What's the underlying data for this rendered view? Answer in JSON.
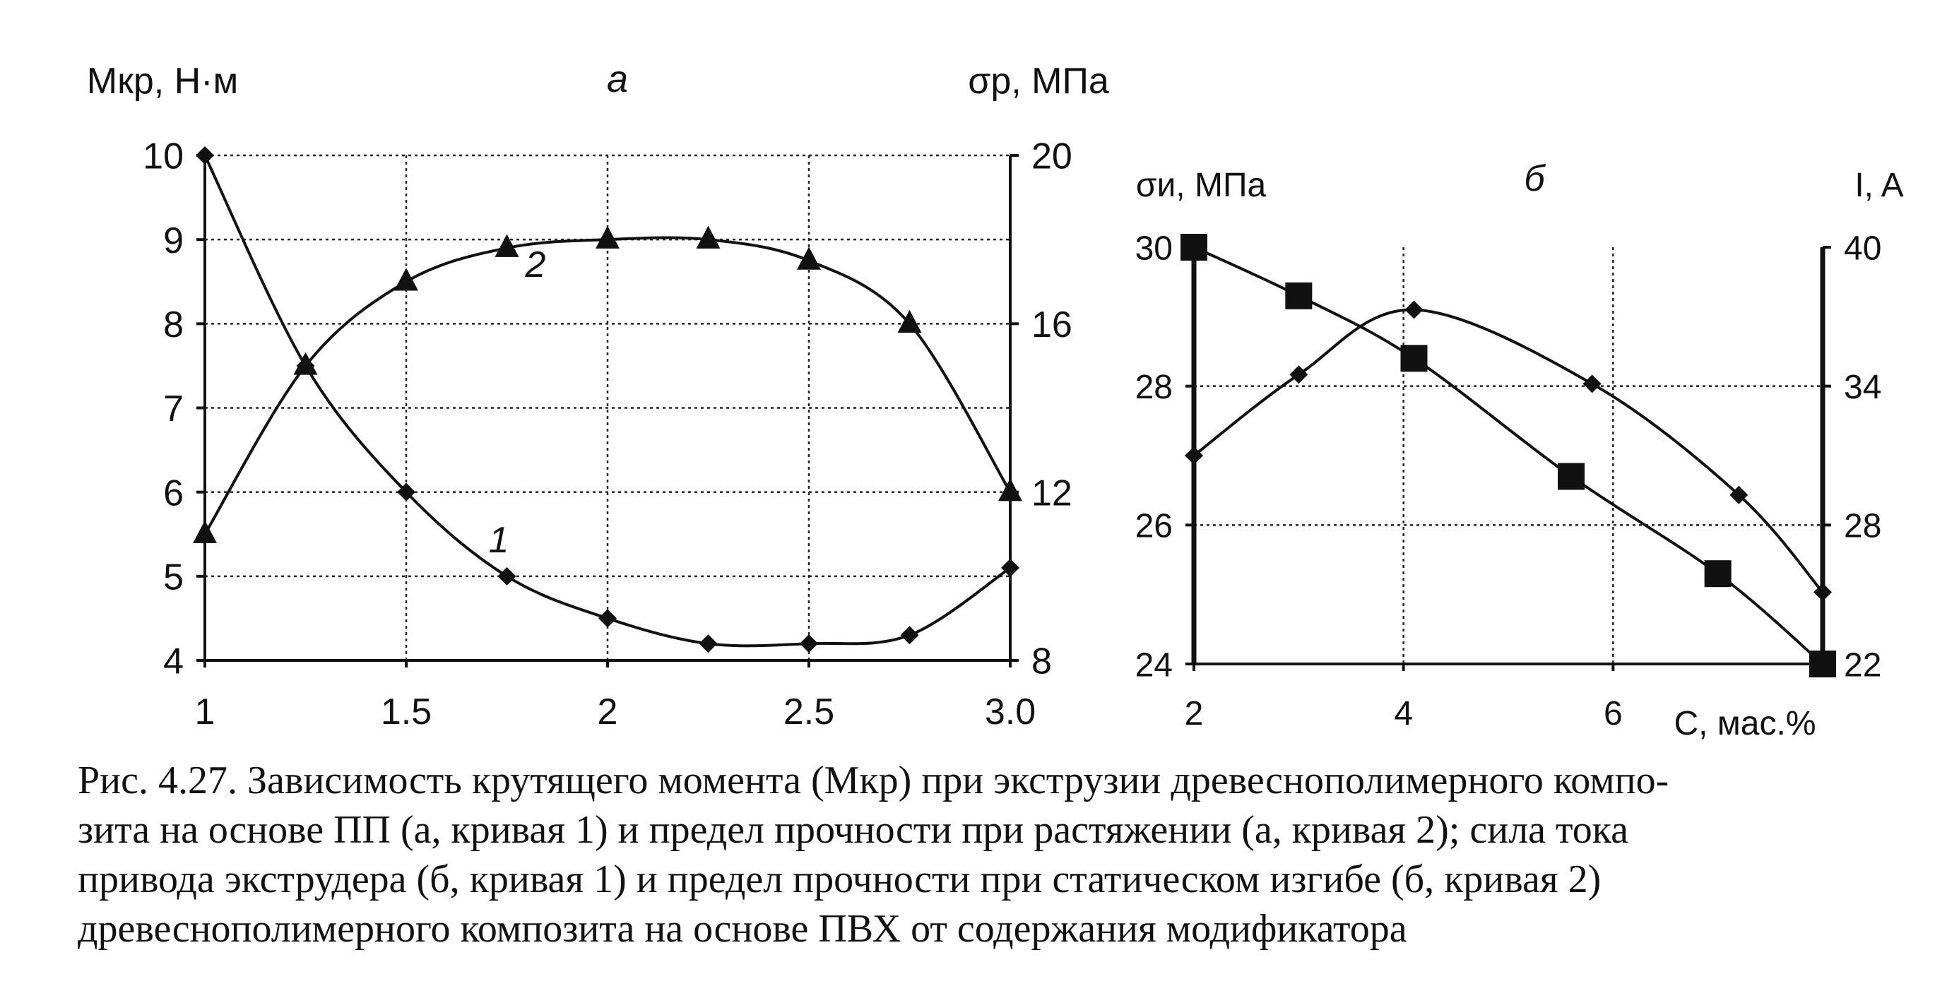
{
  "chart_data": [
    {
      "panel": "a",
      "type": "line",
      "title": "а",
      "ylabel_left": "Mкр, Н·м",
      "ylabel_right": "σр, МПа",
      "x_ticks": [
        "1",
        "1.5",
        "2",
        "2.5",
        "3.0"
      ],
      "y_left_ticks": [
        "4",
        "5",
        "6",
        "7",
        "8",
        "9",
        "10"
      ],
      "y_right_ticks": [
        "8",
        "12",
        "16",
        "20"
      ],
      "xlim": [
        1,
        3
      ],
      "ylim_left": [
        4,
        10
      ],
      "ylim_right": [
        8,
        20
      ],
      "grid": true,
      "series": [
        {
          "name": "1",
          "axis": "left",
          "marker": "diamond",
          "x": [
            1,
            1.25,
            1.5,
            1.75,
            2,
            2.25,
            2.5,
            2.75,
            3
          ],
          "values": [
            10,
            7.5,
            6,
            5,
            4.5,
            4.2,
            4.2,
            4.3,
            5.1
          ]
        },
        {
          "name": "2",
          "axis": "right",
          "marker": "triangle",
          "x": [
            1,
            1.25,
            1.5,
            1.75,
            2,
            2.25,
            2.5,
            2.75,
            3
          ],
          "values": [
            11,
            15,
            17,
            17.8,
            18,
            18,
            17.5,
            16,
            12
          ]
        }
      ]
    },
    {
      "panel": "b",
      "type": "line",
      "title": "б",
      "ylabel_left": "σи, МПа",
      "ylabel_right": "I, A",
      "xlabel": "С, мас.%",
      "x_ticks": [
        "2",
        "4",
        "6"
      ],
      "y_left_ticks": [
        "24",
        "26",
        "28",
        "30"
      ],
      "y_right_ticks": [
        "22",
        "28",
        "34",
        "40"
      ],
      "xlim": [
        2,
        8
      ],
      "ylim_left": [
        24,
        30
      ],
      "ylim_right": [
        22,
        40
      ],
      "grid": true,
      "series": [
        {
          "name": "1",
          "axis": "right",
          "marker": "diamond",
          "x": [
            2,
            3,
            4.1,
            5.8,
            7.2,
            8
          ],
          "values": [
            31,
            34.5,
            37.3,
            34.1,
            29.3,
            25.1
          ]
        },
        {
          "name": "2",
          "axis": "left",
          "marker": "square",
          "x": [
            2,
            3,
            4.1,
            5.6,
            7,
            8
          ],
          "values": [
            30,
            29.3,
            28.4,
            26.7,
            25.3,
            24
          ]
        }
      ]
    }
  ],
  "caption": [
    "Рис. 4.27. Зависимость крутящего момента (Mкр) при экструзии древеснополимерного компо-",
    "зита на основе ПП (а, кривая 1) и предел прочности при растяжении (а, кривая 2); сила тока",
    "привода экструдера (б, кривая 1) и предел прочности при статическом изгибе (б, кривая 2)",
    "древеснополимерного композита на основе ПВХ от содержания модификатора"
  ]
}
